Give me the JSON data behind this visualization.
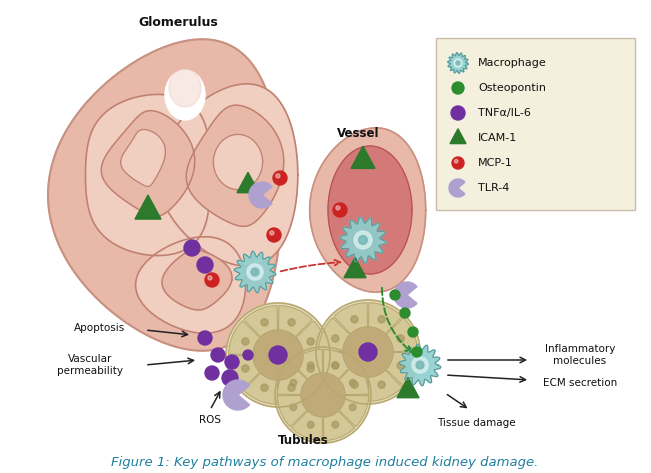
{
  "title": "Figure 1: Key pathways of macrophage induced kidney damage.",
  "title_color": "#2080a0",
  "title_fontsize": 9.5,
  "background_color": "#ffffff",
  "legend_items": [
    "Macrophage",
    "Osteopontin",
    "TNFα/IL-6",
    "ICAM-1",
    "MCP-1",
    "TLR-4"
  ],
  "legend_box_color": "#f5f0dd",
  "legend_box_edge": "#ccbbaa",
  "glom_fill": "#e8b8a8",
  "glom_edge": "#c89080",
  "glom_tube_edge": "#c08070",
  "vessel_outer_fill": "#e8b8a8",
  "vessel_outer_edge": "#c89080",
  "vessel_inner_fill": "#d07070",
  "vessel_inner_edge": "#b85050",
  "tubule_outer_fill": "#e8e0c0",
  "tubule_cell_fill": "#d4c898",
  "tubule_center_fill": "#c0aa78",
  "tubule_edge": "#b8a870",
  "macrophage_body": "#8fcfcf",
  "macrophage_edge": "#5a9999",
  "macrophage_inner": "#aad8d8",
  "osteopontin_color": "#2d8c2d",
  "tnf_color": "#7030a0",
  "icam_color": "#2d7a2d",
  "mcp_color": "#cc2222",
  "tlr_color": "#b0a0d0",
  "arrow_color": "#222222",
  "dashed_green_color": "#2d8c2d",
  "dashed_red_color": "#cc3333",
  "label_glomerulus": "Glomerulus",
  "label_vessel": "Vessel",
  "label_tubules": "Tubules",
  "label_apoptosis": "Apoptosis",
  "label_vascular": "Vascular\npermeability",
  "label_ros": "ROS",
  "label_inflammatory": "Inflammatory\nmolecules",
  "label_ecm": "ECM secretion",
  "label_tissue": "Tissue damage"
}
